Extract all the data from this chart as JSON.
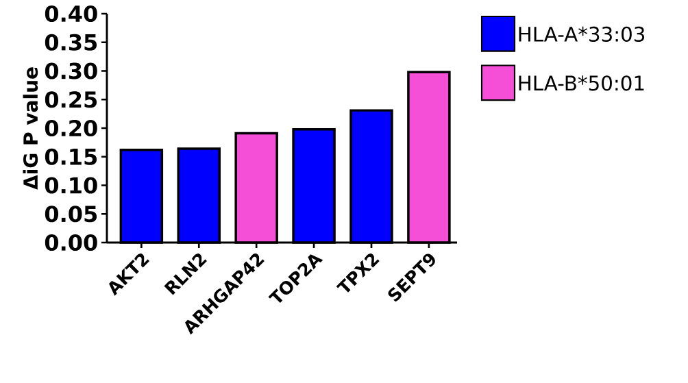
{
  "chart_data": {
    "type": "bar",
    "ylabel": "ΔiG P value",
    "categories": [
      "AKT2",
      "RLN2",
      "ARHGAP42",
      "TOP2A",
      "TPX2",
      "SEPT9"
    ],
    "series": [
      {
        "name": "HLA-A*33:03",
        "color": "#0000ff",
        "values": [
          0.162,
          0.164,
          null,
          0.198,
          0.231,
          null
        ]
      },
      {
        "name": "HLA-B*50:01",
        "color": "#f44fd6",
        "values": [
          null,
          null,
          0.191,
          null,
          null,
          0.298
        ]
      }
    ],
    "ylim": [
      0,
      0.4
    ],
    "yticks": [
      {
        "value": 0,
        "label": "0.00"
      },
      {
        "value": 0.05,
        "label": "0.05"
      },
      {
        "value": 0.1,
        "label": "0.10"
      },
      {
        "value": 0.15,
        "label": "0.15"
      },
      {
        "value": 0.2,
        "label": "0.20"
      },
      {
        "value": 0.25,
        "label": "0.25"
      },
      {
        "value": 0.3,
        "label": "0.30"
      },
      {
        "value": 0.35,
        "label": "0.35"
      },
      {
        "value": 0.4,
        "label": "0.40"
      }
    ],
    "legend": "top right"
  }
}
